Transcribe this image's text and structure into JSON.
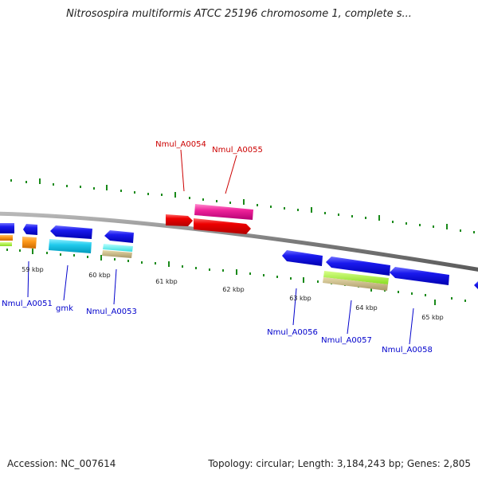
{
  "title": "Nitrosospira multiformis ATCC 25196 chromosome 1, complete s...",
  "footer": {
    "accession": "Accession: NC_007614",
    "summary": "Topology: circular; Length: 3,184,243 bp; Genes: 2,805"
  },
  "colors": {
    "backbone": "#8a8a8a",
    "tick": "#1a8a1a",
    "label_blue": "#0000cc",
    "label_red": "#cc0000",
    "scale_text": "#222222"
  },
  "scale_labels": [
    "59 kbp",
    "60 kbp",
    "61 kbp",
    "62 kbp",
    "63 kbp",
    "64 kbp",
    "65 kbp"
  ],
  "gene_labels": [
    {
      "text": "Nmul_A0051",
      "color": "blue"
    },
    {
      "text": "gmk",
      "color": "blue"
    },
    {
      "text": "Nmul_A0053",
      "color": "blue"
    },
    {
      "text": "Nmul_A0054",
      "color": "red"
    },
    {
      "text": "Nmul_A0055",
      "color": "red"
    },
    {
      "text": "Nmul_A0056",
      "color": "blue"
    },
    {
      "text": "Nmul_A0057",
      "color": "blue"
    },
    {
      "text": "Nmul_A0058",
      "color": "blue"
    }
  ]
}
